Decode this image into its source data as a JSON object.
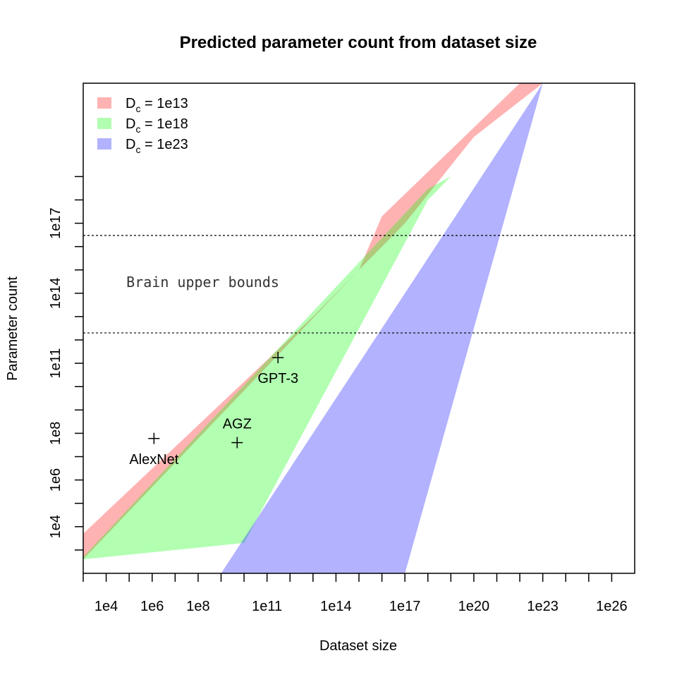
{
  "chart_data": {
    "type": "area",
    "title": "Predicted parameter count from dataset size",
    "xlabel": "Dataset size",
    "ylabel": "Parameter count",
    "x_scale": "log10",
    "y_scale": "log10",
    "xlim": [
      1000.0,
      1e+27
    ],
    "ylim": [
      100.0,
      1e+23
    ],
    "x_ticks": [
      1000.0,
      10000.0,
      100000.0,
      1000000.0,
      10000000.0,
      100000000.0,
      1000000000.0,
      10000000000.0,
      100000000000.0,
      1000000000000.0,
      10000000000000.0,
      100000000000000.0,
      1000000000000000.0,
      1e+16,
      1e+17,
      1e+18,
      1e+19,
      1e+20,
      1e+21,
      1e+22,
      1e+23,
      1e+24,
      1e+25,
      1e+26
    ],
    "x_tick_labels": [
      {
        "value": 10000.0,
        "label": "1e4"
      },
      {
        "value": 1000000.0,
        "label": "1e6"
      },
      {
        "value": 100000000.0,
        "label": "1e8"
      },
      {
        "value": 100000000000.0,
        "label": "1e11"
      },
      {
        "value": 100000000000000.0,
        "label": "1e14"
      },
      {
        "value": 1e+17,
        "label": "1e17"
      },
      {
        "value": 1e+20,
        "label": "1e20"
      },
      {
        "value": 1e+23,
        "label": "1e23"
      },
      {
        "value": 1e+26,
        "label": "1e26"
      }
    ],
    "y_ticks": [
      1000.0,
      10000.0,
      100000.0,
      1000000.0,
      10000000.0,
      100000000.0,
      1000000000.0,
      10000000000.0,
      100000000000.0,
      1000000000000.0,
      10000000000000.0,
      100000000000000.0,
      1000000000000000.0,
      1e+16,
      1e+17,
      1e+18,
      1e+19
    ],
    "y_tick_labels": [
      {
        "value": 10000.0,
        "label": "1e4"
      },
      {
        "value": 1000000.0,
        "label": "1e6"
      },
      {
        "value": 100000000.0,
        "label": "1e8"
      },
      {
        "value": 100000000000.0,
        "label": "1e11"
      },
      {
        "value": 100000000000000.0,
        "label": "1e14"
      },
      {
        "value": 1e+17,
        "label": "1e17"
      }
    ],
    "legend_position": "top-left",
    "series": [
      {
        "name": "D_c = 1e13",
        "legend_main": "D",
        "legend_sub": "c",
        "legend_rest": " = 1e13",
        "color": "#ff0000",
        "opacity": 0.3,
        "lower": [
          [
            1000.0,
            400.0
          ],
          [
            1000000000000000.0,
            1000000000000000.0
          ],
          [
            1e+16,
            2e+17
          ],
          [
            1e+22,
            1e+23
          ]
        ],
        "upper": [
          [
            1000.0,
            5000.0
          ],
          [
            10000000000000.0,
            10000000000000.0
          ],
          [
            100000000000000.0,
            100000000000000.0
          ],
          [
            1e+17,
            1e+17
          ],
          [
            1e+20,
            5e+20
          ],
          [
            1e+23,
            1e+23
          ]
        ]
      },
      {
        "name": "D_c = 1e18",
        "legend_main": "D",
        "legend_sub": "c",
        "legend_rest": " = 1e18",
        "color": "#00ff00",
        "opacity": 0.3,
        "lower": [
          [
            1000.0,
            400.0
          ],
          [
            10000000.0,
            1000.0
          ],
          [
            10000000000.0,
            2000.0
          ],
          [
            1e+18,
            1e+18
          ],
          [
            1e+19,
            1e+19
          ],
          [
            1e+21,
            1e+23
          ]
        ],
        "upper": [
          [
            1000.0,
            500.0
          ],
          [
            1e+18,
            3e+18
          ],
          [
            1e+19,
            1e+19
          ],
          [
            1e+21,
            1e+23
          ]
        ]
      },
      {
        "name": "D_c = 1e23",
        "legend_main": "D",
        "legend_sub": "c",
        "legend_rest": " = 1e23",
        "color": "#0000ff",
        "opacity": 0.3,
        "lower": [
          [
            10000000000000.0,
            100.0
          ],
          [
            1e+17,
            100.0
          ],
          [
            1e+23,
            1e+23
          ],
          [
            1e+27,
            5e+23
          ]
        ],
        "upper": [
          [
            1000.0,
            100.0
          ],
          [
            1000000000.0,
            100.0
          ],
          [
            1e+23,
            1e+23
          ],
          [
            1e+27,
            1e+23
          ]
        ]
      }
    ],
    "reference_lines": [
      {
        "y": 3e+16,
        "style": "dotted"
      },
      {
        "y": 2000000000000.0,
        "style": "dotted"
      }
    ],
    "annotations": [
      {
        "text": "Brain upper bounds",
        "x": 100000.0,
        "y": 300000000000000.0
      }
    ],
    "points": [
      {
        "label": "AlexNet",
        "x": 1200000.0,
        "y": 60000000.0,
        "label_position": "below"
      },
      {
        "label": "AGZ",
        "x": 5000000000.0,
        "y": 40000000.0,
        "label_position": "above"
      },
      {
        "label": "GPT-3",
        "x": 300000000000.0,
        "y": 175000000000.0,
        "label_position": "below"
      }
    ]
  }
}
